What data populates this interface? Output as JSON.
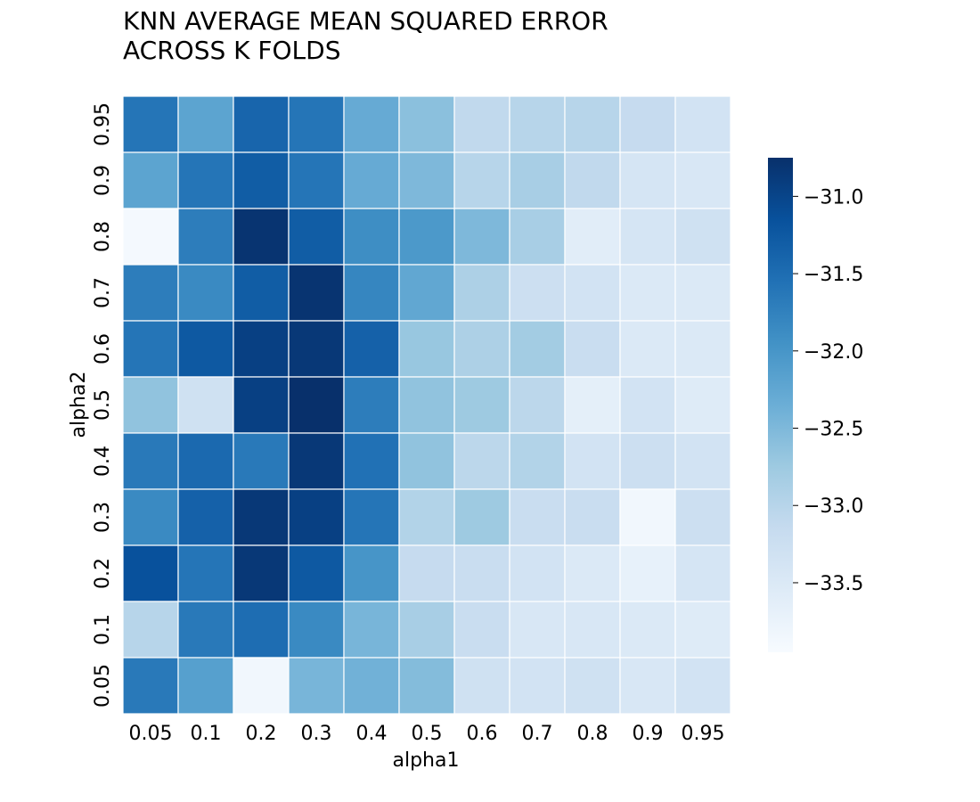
{
  "chart_data": {
    "type": "heatmap",
    "title_lines": [
      "KNN AVERAGE MEAN SQUARED ERROR",
      "ACROSS K FOLDS"
    ],
    "xlabel": "alpha1",
    "ylabel": "alpha2",
    "x_categories": [
      "0.05",
      "0.1",
      "0.2",
      "0.3",
      "0.4",
      "0.5",
      "0.6",
      "0.7",
      "0.8",
      "0.9",
      "0.95"
    ],
    "y_categories_top_to_bottom": [
      "0.95",
      "0.9",
      "0.8",
      "0.7",
      "0.6",
      "0.5",
      "0.4",
      "0.3",
      "0.2",
      "0.1",
      "0.05"
    ],
    "values_top_to_bottom": [
      [
        -31.6,
        -32.2,
        -31.4,
        -31.6,
        -32.3,
        -32.6,
        -33.1,
        -33.0,
        -33.0,
        -33.15,
        -33.35
      ],
      [
        -32.2,
        -31.6,
        -31.3,
        -31.6,
        -32.3,
        -32.5,
        -33.0,
        -32.85,
        -33.1,
        -33.4,
        -33.45
      ],
      [
        -33.9,
        -31.7,
        -30.8,
        -31.3,
        -31.9,
        -32.05,
        -32.5,
        -32.85,
        -33.6,
        -33.4,
        -33.3
      ],
      [
        -31.7,
        -31.85,
        -31.3,
        -30.8,
        -31.8,
        -32.25,
        -32.9,
        -33.25,
        -33.35,
        -33.5,
        -33.5
      ],
      [
        -31.6,
        -31.25,
        -30.95,
        -30.85,
        -31.35,
        -32.7,
        -32.9,
        -32.8,
        -33.2,
        -33.5,
        -33.5
      ],
      [
        -32.65,
        -33.3,
        -30.95,
        -30.75,
        -31.7,
        -32.65,
        -32.75,
        -33.05,
        -33.65,
        -33.35,
        -33.55
      ],
      [
        -31.65,
        -31.45,
        -31.65,
        -30.85,
        -31.55,
        -32.65,
        -33.05,
        -32.95,
        -33.35,
        -33.25,
        -33.35
      ],
      [
        -31.85,
        -31.35,
        -30.85,
        -30.95,
        -31.6,
        -32.95,
        -32.75,
        -33.2,
        -33.2,
        -33.85,
        -33.25
      ],
      [
        -31.15,
        -31.6,
        -30.85,
        -31.25,
        -32.0,
        -33.15,
        -33.2,
        -33.35,
        -33.5,
        -33.7,
        -33.4
      ],
      [
        -33.0,
        -31.65,
        -31.5,
        -31.85,
        -32.45,
        -32.85,
        -33.2,
        -33.45,
        -33.45,
        -33.5,
        -33.55
      ],
      [
        -31.65,
        -32.15,
        -33.85,
        -32.45,
        -32.4,
        -32.55,
        -33.3,
        -33.35,
        -33.3,
        -33.45,
        -33.35
      ]
    ],
    "colorbar": {
      "vmin": -33.95,
      "vmax": -30.75,
      "ticks": [
        -31.0,
        -31.5,
        -32.0,
        -32.5,
        -33.0,
        -33.5
      ],
      "tick_labels": [
        "−31.0",
        "−31.5",
        "−32.0",
        "−32.5",
        "−33.0",
        "−33.5"
      ]
    },
    "colormap": "Blues",
    "colormap_stops": [
      "#f7fbff",
      "#deebf7",
      "#c6dbef",
      "#9ecae1",
      "#6baed6",
      "#4292c6",
      "#2171b5",
      "#08519c",
      "#08306b"
    ],
    "grid_line_color": "#ffffff"
  }
}
